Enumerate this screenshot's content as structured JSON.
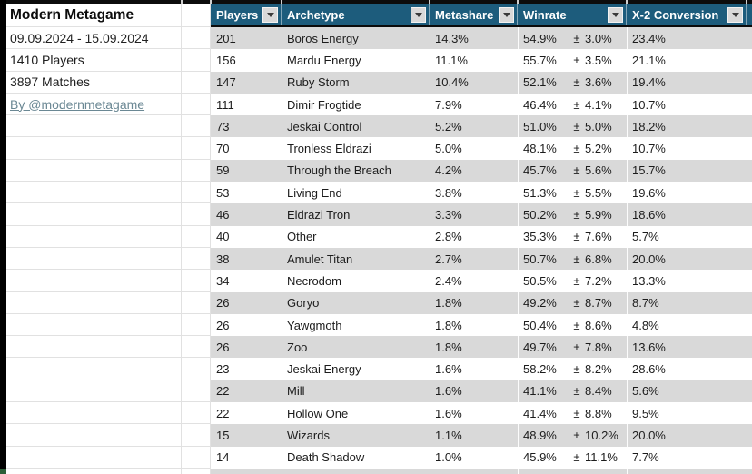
{
  "info_panel": {
    "title": "Modern Metagame",
    "date_range": "09.09.2024 - 15.09.2024",
    "players": "1410 Players",
    "matches": "3897 Matches",
    "byline": "By @modernmetagame"
  },
  "table": {
    "columns": [
      {
        "label": "Players"
      },
      {
        "label": "Archetype"
      },
      {
        "label": "Metashare"
      },
      {
        "label": "Winrate"
      },
      {
        "label": "X-2 Conversion"
      }
    ],
    "plus_minus": "±",
    "rows": [
      {
        "players": "201",
        "archetype": "Boros Energy",
        "metashare": "14.3%",
        "winrate": "54.9%",
        "error": "3.0%",
        "conversion": "23.4%"
      },
      {
        "players": "156",
        "archetype": "Mardu Energy",
        "metashare": "11.1%",
        "winrate": "55.7%",
        "error": "3.5%",
        "conversion": "21.1%"
      },
      {
        "players": "147",
        "archetype": "Ruby Storm",
        "metashare": "10.4%",
        "winrate": "52.1%",
        "error": "3.6%",
        "conversion": "19.4%"
      },
      {
        "players": "111",
        "archetype": "Dimir Frogtide",
        "metashare": "7.9%",
        "winrate": "46.4%",
        "error": "4.1%",
        "conversion": "10.7%"
      },
      {
        "players": "73",
        "archetype": "Jeskai Control",
        "metashare": "5.2%",
        "winrate": "51.0%",
        "error": "5.0%",
        "conversion": "18.2%"
      },
      {
        "players": "70",
        "archetype": "Tronless Eldrazi",
        "metashare": "5.0%",
        "winrate": "48.1%",
        "error": "5.2%",
        "conversion": "10.7%"
      },
      {
        "players": "59",
        "archetype": "Through the Breach",
        "metashare": "4.2%",
        "winrate": "45.7%",
        "error": "5.6%",
        "conversion": "15.7%"
      },
      {
        "players": "53",
        "archetype": "Living End",
        "metashare": "3.8%",
        "winrate": "51.3%",
        "error": "5.5%",
        "conversion": "19.6%"
      },
      {
        "players": "46",
        "archetype": "Eldrazi Tron",
        "metashare": "3.3%",
        "winrate": "50.2%",
        "error": "5.9%",
        "conversion": "18.6%"
      },
      {
        "players": "40",
        "archetype": "Other",
        "metashare": "2.8%",
        "winrate": "35.3%",
        "error": "7.6%",
        "conversion": "5.7%"
      },
      {
        "players": "38",
        "archetype": "Amulet Titan",
        "metashare": "2.7%",
        "winrate": "50.7%",
        "error": "6.8%",
        "conversion": "20.0%"
      },
      {
        "players": "34",
        "archetype": "Necrodom",
        "metashare": "2.4%",
        "winrate": "50.5%",
        "error": "7.2%",
        "conversion": "13.3%"
      },
      {
        "players": "26",
        "archetype": "Goryo",
        "metashare": "1.8%",
        "winrate": "49.2%",
        "error": "8.7%",
        "conversion": "8.7%"
      },
      {
        "players": "26",
        "archetype": "Yawgmoth",
        "metashare": "1.8%",
        "winrate": "50.4%",
        "error": "8.6%",
        "conversion": "4.8%"
      },
      {
        "players": "26",
        "archetype": "Zoo",
        "metashare": "1.8%",
        "winrate": "49.7%",
        "error": "7.8%",
        "conversion": "13.6%"
      },
      {
        "players": "23",
        "archetype": "Jeskai Energy",
        "metashare": "1.6%",
        "winrate": "58.2%",
        "error": "8.2%",
        "conversion": "28.6%"
      },
      {
        "players": "22",
        "archetype": "Mill",
        "metashare": "1.6%",
        "winrate": "41.1%",
        "error": "8.4%",
        "conversion": "5.6%"
      },
      {
        "players": "22",
        "archetype": "Hollow One",
        "metashare": "1.6%",
        "winrate": "41.4%",
        "error": "8.8%",
        "conversion": "9.5%"
      },
      {
        "players": "15",
        "archetype": "Wizards",
        "metashare": "1.1%",
        "winrate": "48.9%",
        "error": "10.2%",
        "conversion": "20.0%"
      },
      {
        "players": "14",
        "archetype": "Death Shadow",
        "metashare": "1.0%",
        "winrate": "45.9%",
        "error": "11.1%",
        "conversion": "7.7%"
      }
    ]
  },
  "icons": {
    "filter_dropdown": "triangle-down"
  },
  "colors": {
    "header_bg": "#1D5C7C",
    "row_stripe": "#D9D9D9",
    "link": "#6B8894",
    "grid": "#E1E1E1",
    "corner_cell_green": "#2B5E38"
  }
}
